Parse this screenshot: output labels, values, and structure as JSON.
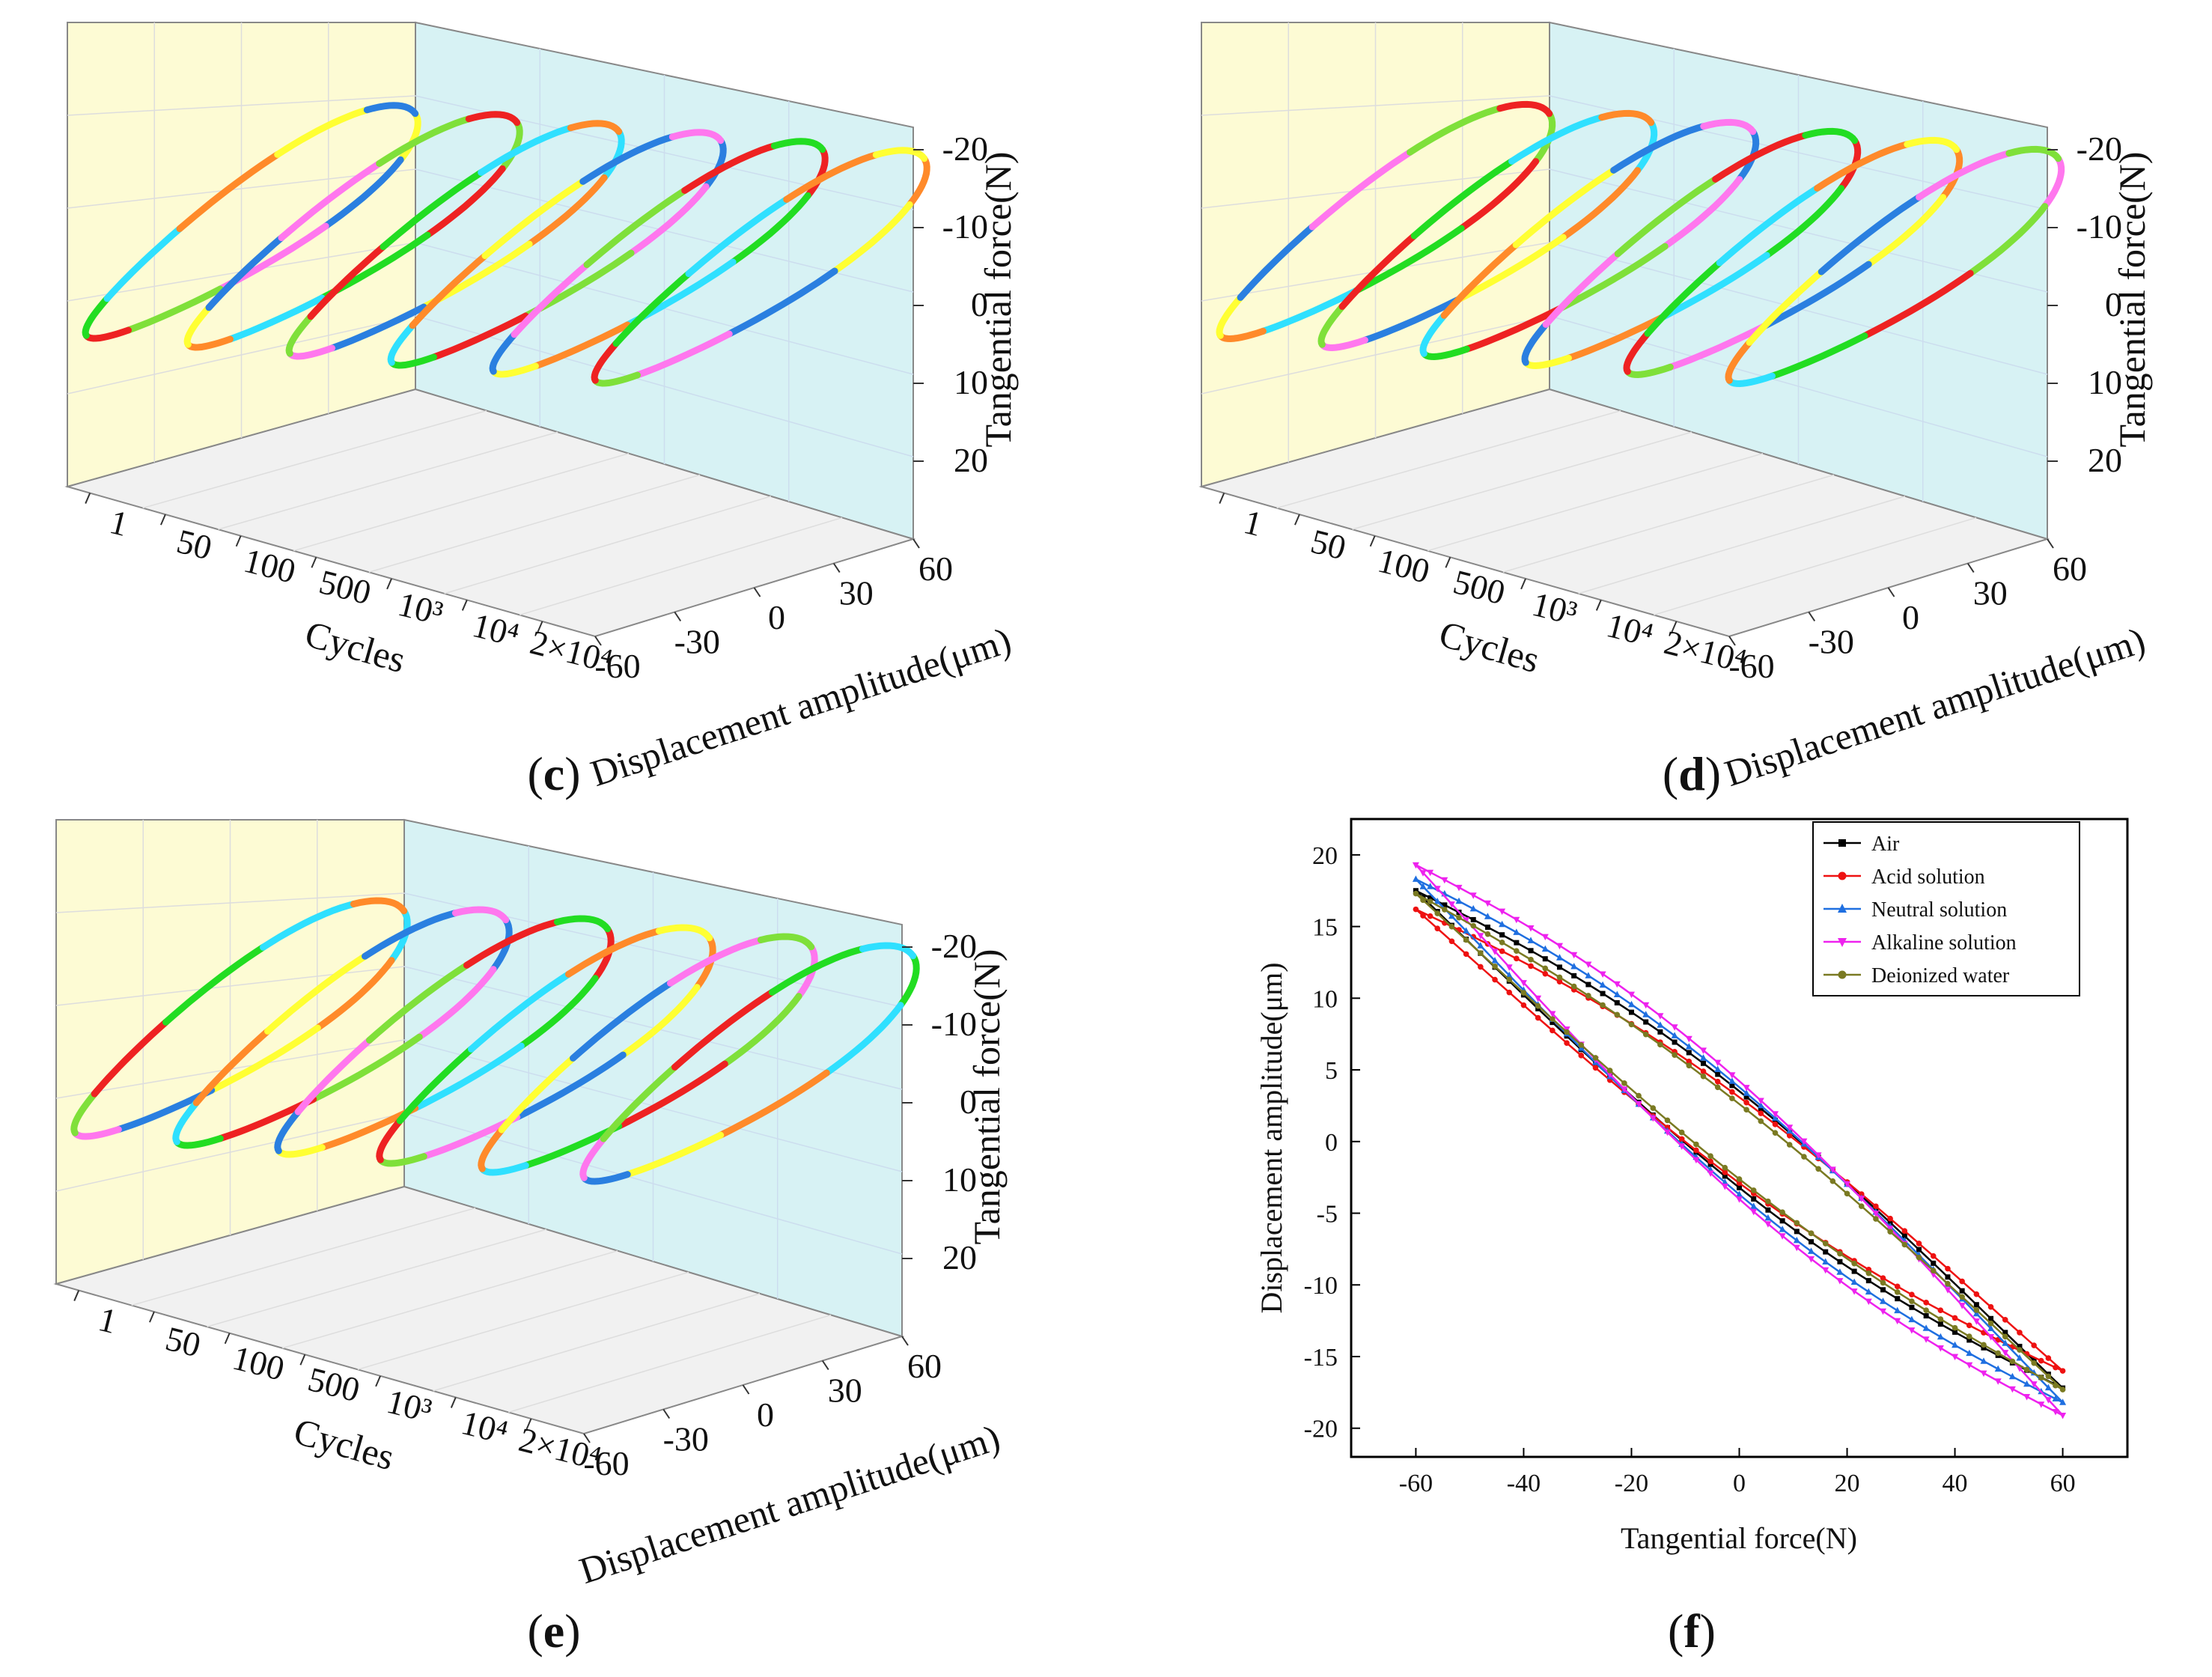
{
  "chart_data": [
    {
      "panel": "c",
      "type": "line",
      "subtype": "3d-stacked-hysteresis-loops",
      "x_axis": {
        "label": "Cycles",
        "categories": [
          "1",
          "50",
          "100",
          "500",
          "10³",
          "10⁴",
          "2×10⁴"
        ]
      },
      "y_axis": {
        "label": "Displacement amplitude(μm)",
        "ticks": [
          "-60",
          "-30",
          "0",
          "30",
          "60"
        ],
        "range": [
          -60,
          60
        ]
      },
      "z_axis": {
        "label": "Tangential force(N)",
        "ticks": [
          "-20",
          "-10",
          "0",
          "10",
          "20"
        ],
        "range": [
          -20,
          20
        ]
      },
      "segment_colors": [
        "#ffff33",
        "#7fe03a",
        "#2fe0ff",
        "#2a7fe0",
        "#ee2222",
        "#ff8a2a",
        "#ff77ee",
        "#22dd22"
      ]
    },
    {
      "panel": "d",
      "type": "line",
      "subtype": "3d-stacked-hysteresis-loops",
      "x_axis": {
        "label": "Cycles",
        "categories": [
          "1",
          "50",
          "100",
          "500",
          "10³",
          "10⁴",
          "2×10⁴"
        ]
      },
      "y_axis": {
        "label": "Displacement amplitude(μm)",
        "ticks": [
          "-60",
          "-30",
          "0",
          "30",
          "60"
        ],
        "range": [
          -60,
          60
        ]
      },
      "z_axis": {
        "label": "Tangential force(N)",
        "ticks": [
          "-20",
          "-10",
          "0",
          "10",
          "20"
        ],
        "range": [
          -20,
          20
        ]
      },
      "segment_colors": [
        "#ffff33",
        "#7fe03a",
        "#2fe0ff",
        "#2a7fe0",
        "#ee2222",
        "#ff8a2a",
        "#ff77ee",
        "#22dd22"
      ]
    },
    {
      "panel": "e",
      "type": "line",
      "subtype": "3d-stacked-hysteresis-loops",
      "x_axis": {
        "label": "Cycles",
        "categories": [
          "1",
          "50",
          "100",
          "500",
          "10³",
          "10⁴",
          "2×10⁴"
        ]
      },
      "y_axis": {
        "label": "Displacement amplitude(μm)",
        "ticks": [
          "-60",
          "-30",
          "0",
          "30",
          "60"
        ],
        "range": [
          -60,
          60
        ]
      },
      "z_axis": {
        "label": "Tangential force(N)",
        "ticks": [
          "-20",
          "-10",
          "0",
          "10",
          "20"
        ],
        "range": [
          -20,
          20
        ]
      },
      "segment_colors": [
        "#ffff33",
        "#7fe03a",
        "#2fe0ff",
        "#2a7fe0",
        "#ee2222",
        "#ff8a2a",
        "#ff77ee",
        "#22dd22"
      ]
    },
    {
      "panel": "f",
      "type": "line",
      "subtype": "hysteresis-loops",
      "xlabel": "Tangential force(N)",
      "ylabel": "Displacement amplitude(μm)",
      "xlim": [
        -72,
        72
      ],
      "ylim": [
        -22,
        22.5
      ],
      "xticks": [
        -60,
        -40,
        -20,
        0,
        20,
        40,
        60
      ],
      "yticks": [
        -20,
        -15,
        -10,
        -5,
        0,
        5,
        10,
        15,
        20
      ],
      "legend_position": "top-right",
      "series": [
        {
          "name": "Air",
          "color": "#000000",
          "marker": "square",
          "fmax": 17.5,
          "fmin": -17.2,
          "shape": 1.8
        },
        {
          "name": "Acid solution",
          "color": "#ee1111",
          "marker": "circle",
          "fmax": 16.2,
          "fmin": -16.0,
          "shape": 1.6
        },
        {
          "name": "Neutral solution",
          "color": "#1f6fe0",
          "marker": "triangle-up",
          "fmax": 18.3,
          "fmin": -18.2,
          "shape": 2.0
        },
        {
          "name": "Alkaline solution",
          "color": "#ee22ee",
          "marker": "triangle-down",
          "fmax": 19.3,
          "fmin": -19.1,
          "shape": 2.2
        },
        {
          "name": "Deionized water",
          "color": "#7a7a22",
          "marker": "circle",
          "fmax": 17.3,
          "fmin": -17.3,
          "shape": 1.4
        }
      ]
    }
  ],
  "panel_labels": {
    "c": {
      "open": "(",
      "letter": "c",
      "close": ")"
    },
    "d": {
      "open": "(",
      "letter": "d",
      "close": ")"
    },
    "e": {
      "open": "(",
      "letter": "e",
      "close": ")"
    },
    "f": {
      "open": "(",
      "letter": "f",
      "close": ")"
    }
  }
}
